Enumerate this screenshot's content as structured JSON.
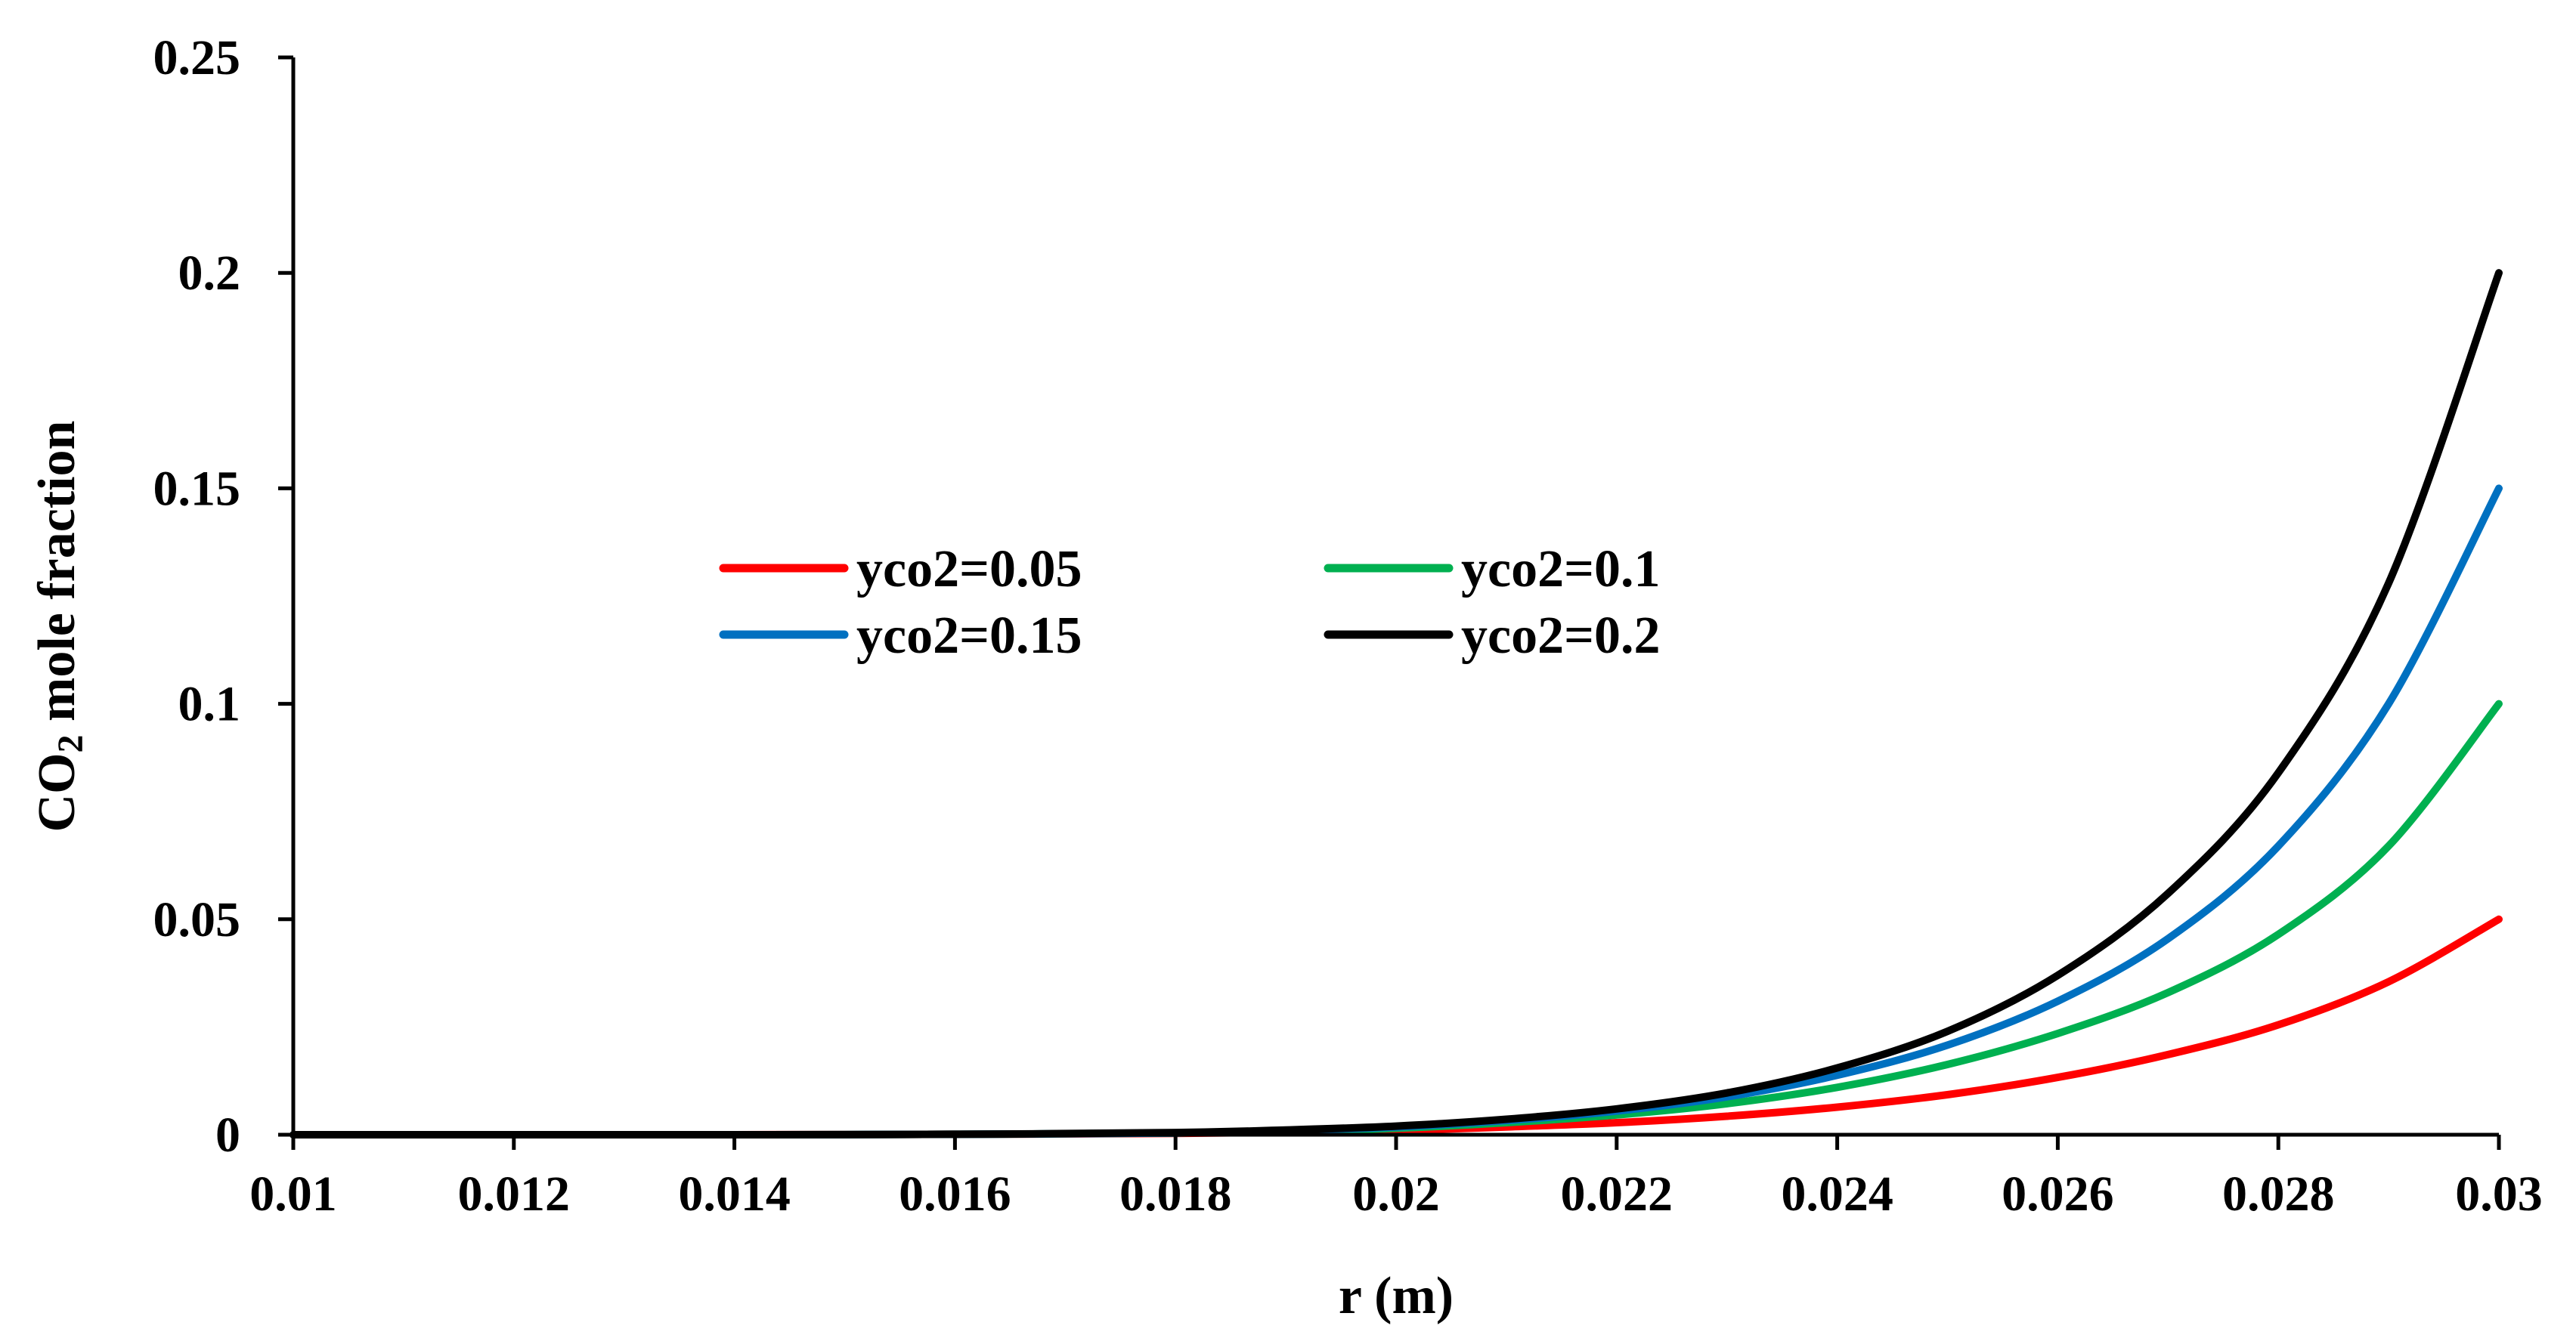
{
  "chart_data": {
    "type": "line",
    "title": "",
    "xlabel": "r (m)",
    "ylabel": {
      "main": "CO",
      "subscript": "2",
      "rest": " mole fraction"
    },
    "xlim": [
      0.01,
      0.03
    ],
    "ylim": [
      0,
      0.25
    ],
    "x_ticks": [
      "0.01",
      "0.012",
      "0.014",
      "0.016",
      "0.018",
      "0.02",
      "0.022",
      "0.024",
      "0.026",
      "0.028",
      "0.03"
    ],
    "y_ticks": [
      "0",
      "0.05",
      "0.1",
      "0.15",
      "0.2",
      "0.25"
    ],
    "grid": false,
    "legend_position": "center",
    "x": [
      0.01,
      0.012,
      0.014,
      0.016,
      0.018,
      0.019,
      0.02,
      0.021,
      0.022,
      0.023,
      0.024,
      0.025,
      0.026,
      0.027,
      0.028,
      0.029,
      0.03
    ],
    "series": [
      {
        "name": "yco2=0.05",
        "color": "#ff0000",
        "values": [
          0,
          0,
          0,
          0.0001,
          0.0003,
          0.0006,
          0.001,
          0.0018,
          0.0028,
          0.0043,
          0.0064,
          0.0093,
          0.0133,
          0.0186,
          0.0255,
          0.0355,
          0.05
        ]
      },
      {
        "name": "yco2=0.1",
        "color": "#00b050",
        "values": [
          0,
          0,
          0,
          0.0001,
          0.0004,
          0.0008,
          0.0015,
          0.0028,
          0.0046,
          0.0072,
          0.011,
          0.0163,
          0.0235,
          0.033,
          0.0465,
          0.067,
          0.1
        ]
      },
      {
        "name": "yco2=0.15",
        "color": "#0070c0",
        "values": [
          0,
          0,
          0,
          0.0001,
          0.0004,
          0.001,
          0.0018,
          0.0033,
          0.0055,
          0.0088,
          0.0138,
          0.0208,
          0.031,
          0.0455,
          0.067,
          0.1,
          0.15
        ]
      },
      {
        "name": "yco2=0.2",
        "color": "#000000",
        "values": [
          0,
          0,
          0,
          0.0001,
          0.0005,
          0.0011,
          0.002,
          0.0036,
          0.006,
          0.0097,
          0.0155,
          0.024,
          0.037,
          0.056,
          0.084,
          0.128,
          0.2
        ]
      }
    ]
  }
}
